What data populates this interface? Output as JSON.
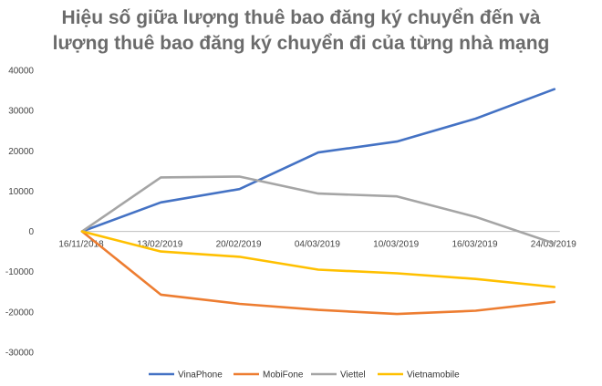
{
  "chart_data": {
    "type": "line",
    "title": [
      "Hiệu số giữa lượng thuê bao đăng ký chuyển đến và",
      "lượng thuê bao đăng ký chuyển đi của từng nhà mạng"
    ],
    "categories": [
      "16/11/2018",
      "13/02/2019",
      "20/02/2019",
      "04/03/2019",
      "10/03/2019",
      "16/03/2019",
      "24/03/2019"
    ],
    "ylim": [
      -30000,
      40000
    ],
    "yticks": [
      40000,
      30000,
      20000,
      10000,
      0,
      -10000,
      -20000,
      -30000
    ],
    "legend_position": "bottom",
    "series": [
      {
        "name": "VinaPhone",
        "color": "#4472c4",
        "values": [
          0,
          7200,
          10500,
          19600,
          22300,
          28000,
          35300
        ]
      },
      {
        "name": "MobiFone",
        "color": "#ed7d31",
        "values": [
          0,
          -15700,
          -18000,
          -19500,
          -20500,
          -19700,
          -17500
        ]
      },
      {
        "name": "Viettel",
        "color": "#a5a5a5",
        "values": [
          0,
          13400,
          13600,
          9400,
          8700,
          3600,
          -3000
        ]
      },
      {
        "name": "Vietnamobile",
        "color": "#ffc000",
        "values": [
          0,
          -5000,
          -6300,
          -9500,
          -10400,
          -11800,
          -13800
        ]
      }
    ]
  }
}
